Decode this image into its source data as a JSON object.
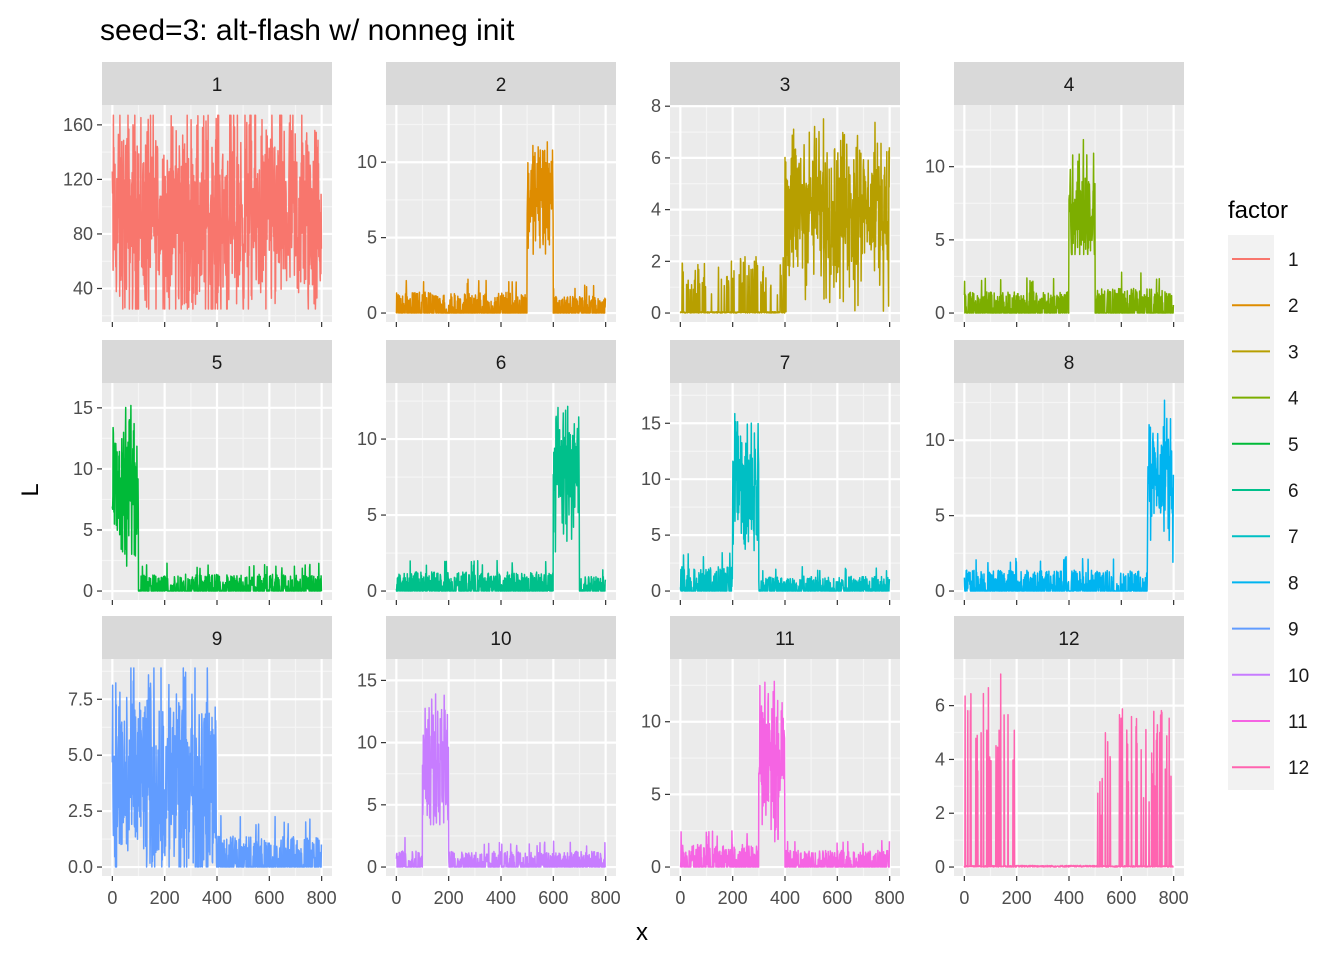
{
  "chart_data": {
    "type": "line",
    "title": "seed=3: alt-flash w/ nonneg init",
    "xlabel": "x",
    "ylabel": "L",
    "layout": "facet_wrap 3 rows x 4 cols, x axis shared by column, y axis free per panel",
    "legend": {
      "title": "factor",
      "position": "right"
    },
    "grid": true,
    "x_range": [
      0,
      800
    ],
    "x_ticks": [
      0,
      200,
      400,
      600,
      800
    ],
    "x_tick_labels": [
      "0",
      "200",
      "400",
      "600",
      "800"
    ],
    "panels": [
      {
        "label": "1",
        "series": "1",
        "color": "#F8766D",
        "ylim": [
          22,
          168
        ],
        "yticks": [
          40,
          80,
          120,
          160
        ],
        "yticklabels": [
          "40",
          "80",
          "120",
          "160"
        ],
        "segments": [
          {
            "x": [
              0,
              800
            ],
            "level": "noise",
            "mean": 92,
            "min": 25,
            "max": 167
          }
        ]
      },
      {
        "label": "2",
        "series": "2",
        "color": "#DE8C00",
        "ylim": [
          0,
          13.2
        ],
        "yticks": [
          0,
          5,
          10
        ],
        "yticklabels": [
          "0",
          "5",
          "10"
        ],
        "segments": [
          {
            "x": [
              0,
              500
            ],
            "level": "sparse",
            "mean": 0.5,
            "min": 0,
            "max": 2.3
          },
          {
            "x": [
              500,
              600
            ],
            "level": "high",
            "mean": 8.2,
            "min": 3.9,
            "max": 13
          },
          {
            "x": [
              600,
              800
            ],
            "level": "sparse",
            "mean": 0.5,
            "min": 0,
            "max": 1.9
          }
        ]
      },
      {
        "label": "3",
        "series": "3",
        "color": "#B79F00",
        "ylim": [
          0,
          7.7
        ],
        "yticks": [
          0,
          2,
          4,
          6,
          8
        ],
        "yticklabels": [
          "0",
          "2",
          "4",
          "6",
          "8"
        ],
        "segments": [
          {
            "x": [
              0,
              400
            ],
            "level": "spiky",
            "mean": 0.2,
            "min": 0,
            "max": 2.2
          },
          {
            "x": [
              400,
              800
            ],
            "level": "high",
            "mean": 4.3,
            "min": 0,
            "max": 7.6
          }
        ]
      },
      {
        "label": "4",
        "series": "4",
        "color": "#7CAE00",
        "ylim": [
          0,
          13.6
        ],
        "yticks": [
          0,
          5,
          10
        ],
        "yticklabels": [
          "0",
          "5",
          "10"
        ],
        "segments": [
          {
            "x": [
              0,
              400
            ],
            "level": "sparse",
            "mean": 0.6,
            "min": 0,
            "max": 2.4
          },
          {
            "x": [
              400,
              500
            ],
            "level": "high",
            "mean": 7.5,
            "min": 4,
            "max": 13.4
          },
          {
            "x": [
              500,
              800
            ],
            "level": "sparse",
            "mean": 0.6,
            "min": 0,
            "max": 2.8
          }
        ]
      },
      {
        "label": "5",
        "series": "5",
        "color": "#00BA38",
        "ylim": [
          0,
          16.3
        ],
        "yticks": [
          0,
          5,
          10,
          15
        ],
        "yticklabels": [
          "0",
          "5",
          "10",
          "15"
        ],
        "segments": [
          {
            "x": [
              0,
              100
            ],
            "level": "high",
            "mean": 9,
            "min": 1.8,
            "max": 16.1
          },
          {
            "x": [
              100,
              800
            ],
            "level": "sparse",
            "mean": 0.6,
            "min": 0,
            "max": 2.3
          }
        ]
      },
      {
        "label": "6",
        "series": "6",
        "color": "#00C08B",
        "ylim": [
          0,
          13.1
        ],
        "yticks": [
          0,
          5,
          10
        ],
        "yticklabels": [
          "0",
          "5",
          "10"
        ],
        "segments": [
          {
            "x": [
              0,
              600
            ],
            "level": "sparse",
            "mean": 0.6,
            "min": 0,
            "max": 2.1
          },
          {
            "x": [
              600,
              700
            ],
            "level": "high",
            "mean": 8.5,
            "min": 2.3,
            "max": 12.9
          },
          {
            "x": [
              700,
              800
            ],
            "level": "sparse",
            "mean": 0.6,
            "min": 0,
            "max": 1.6
          }
        ]
      },
      {
        "label": "7",
        "series": "7",
        "color": "#00BFC4",
        "ylim": [
          0,
          17.8
        ],
        "yticks": [
          0,
          5,
          10,
          15
        ],
        "yticklabels": [
          "0",
          "5",
          "10",
          "15"
        ],
        "segments": [
          {
            "x": [
              0,
              200
            ],
            "level": "sparse",
            "mean": 0.6,
            "min": 0,
            "max": 3.6
          },
          {
            "x": [
              200,
              300
            ],
            "level": "high",
            "mean": 10,
            "min": 3.5,
            "max": 17.5
          },
          {
            "x": [
              300,
              800
            ],
            "level": "sparse",
            "mean": 0.6,
            "min": 0,
            "max": 2.2
          }
        ]
      },
      {
        "label": "8",
        "series": "8",
        "color": "#00B4F0",
        "ylim": [
          0,
          13.2
        ],
        "yticks": [
          0,
          5,
          10
        ],
        "yticklabels": [
          "0",
          "5",
          "10"
        ],
        "segments": [
          {
            "x": [
              0,
              700
            ],
            "level": "sparse",
            "mean": 0.6,
            "min": 0,
            "max": 2.3
          },
          {
            "x": [
              700,
              800
            ],
            "level": "high",
            "mean": 8,
            "min": 1.8,
            "max": 13
          }
        ]
      },
      {
        "label": "9",
        "series": "9",
        "color": "#619CFF",
        "ylim": [
          0,
          8.9
        ],
        "yticks": [
          0,
          2.5,
          5,
          7.5
        ],
        "yticklabels": [
          "0.0",
          "2.5",
          "5.0",
          "7.5"
        ],
        "segments": [
          {
            "x": [
              0,
              400
            ],
            "level": "noise",
            "mean": 3.8,
            "min": 0,
            "max": 8.9
          },
          {
            "x": [
              400,
              800
            ],
            "level": "sparse",
            "mean": 0.3,
            "min": 0,
            "max": 2.3
          }
        ]
      },
      {
        "label": "10",
        "series": "10",
        "color": "#C77CFF",
        "ylim": [
          0,
          16
        ],
        "yticks": [
          0,
          5,
          10,
          15
        ],
        "yticklabels": [
          "0",
          "5",
          "10",
          "15"
        ],
        "segments": [
          {
            "x": [
              0,
              100
            ],
            "level": "sparse",
            "mean": 0.6,
            "min": 0,
            "max": 2.4
          },
          {
            "x": [
              100,
              200
            ],
            "level": "high",
            "mean": 8.5,
            "min": 3.4,
            "max": 15.8
          },
          {
            "x": [
              200,
              800
            ],
            "level": "sparse",
            "mean": 0.6,
            "min": 0,
            "max": 2.1
          }
        ]
      },
      {
        "label": "11",
        "series": "11",
        "color": "#F564E3",
        "ylim": [
          0,
          13.7
        ],
        "yticks": [
          0,
          5,
          10
        ],
        "yticklabels": [
          "0",
          "5",
          "10"
        ],
        "segments": [
          {
            "x": [
              0,
              300
            ],
            "level": "sparse",
            "mean": 0.6,
            "min": 0,
            "max": 2.6
          },
          {
            "x": [
              300,
              400
            ],
            "level": "high",
            "mean": 7.5,
            "min": 1.7,
            "max": 13.5
          },
          {
            "x": [
              400,
              800
            ],
            "level": "sparse",
            "mean": 0.6,
            "min": 0,
            "max": 1.9
          }
        ]
      },
      {
        "label": "12",
        "series": "12",
        "color": "#FF64B0",
        "ylim": [
          0,
          7.4
        ],
        "yticks": [
          0,
          2,
          4,
          6
        ],
        "yticklabels": [
          "0",
          "2",
          "4",
          "6"
        ],
        "segments": [
          {
            "x": [
              0,
              200
            ],
            "level": "spiky",
            "mean": 0.4,
            "min": 0,
            "max": 7.3
          },
          {
            "x": [
              200,
              500
            ],
            "level": "flat",
            "mean": 0.05,
            "min": 0,
            "max": 0.2
          },
          {
            "x": [
              500,
              800
            ],
            "level": "spiky",
            "mean": 0.3,
            "min": 0,
            "max": 5.9
          }
        ]
      }
    ]
  }
}
